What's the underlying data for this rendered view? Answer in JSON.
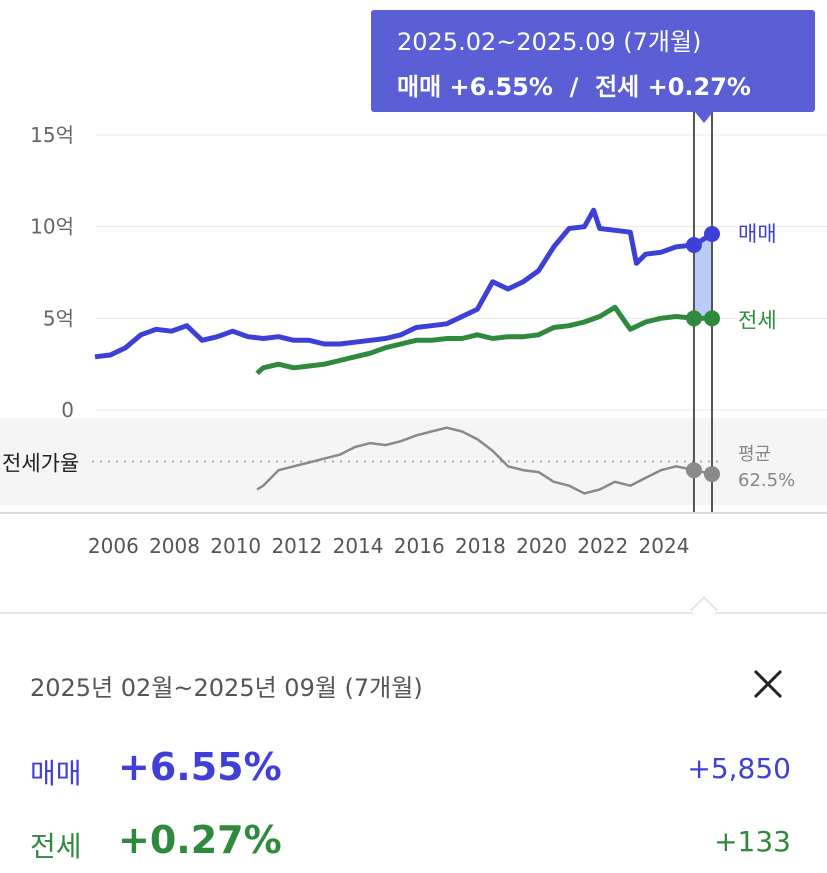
{
  "tooltip": {
    "period": "2025.02~2025.09 (7개월)",
    "summary": "매매 +6.55%  /  전세 +0.27%"
  },
  "colors": {
    "sale": "#3d3fd6",
    "jeonse": "#2f8a3e",
    "ratio": "#8a8a8a",
    "tooltip_bg": "#5a5fd6",
    "highlight": "#b9ccf5"
  },
  "chart_data": {
    "type": "line",
    "x_ticks": [
      "2006",
      "2008",
      "2010",
      "2012",
      "2014",
      "2016",
      "2018",
      "2020",
      "2022",
      "2024"
    ],
    "y_ticks": [
      "15억",
      "10억",
      "5억",
      "0"
    ],
    "y_unit": "억",
    "ylim": [
      0,
      15
    ],
    "ratio_label": "전세가율",
    "ratio_avg_label": "평균",
    "ratio_avg_value": "62.5%",
    "ratio_avg": 62.5,
    "selection": {
      "start": 2025.08,
      "end": 2025.67
    },
    "series": [
      {
        "name": "매매",
        "end_label": "매매",
        "points": [
          [
            2005.5,
            2.9
          ],
          [
            2006.0,
            3.0
          ],
          [
            2006.5,
            3.4
          ],
          [
            2007.0,
            4.1
          ],
          [
            2007.5,
            4.4
          ],
          [
            2008.0,
            4.3
          ],
          [
            2008.5,
            4.6
          ],
          [
            2009.0,
            3.8
          ],
          [
            2009.5,
            4.0
          ],
          [
            2010.0,
            4.3
          ],
          [
            2010.5,
            4.0
          ],
          [
            2011.0,
            3.9
          ],
          [
            2011.5,
            4.0
          ],
          [
            2012.0,
            3.8
          ],
          [
            2012.5,
            3.8
          ],
          [
            2013.0,
            3.6
          ],
          [
            2013.5,
            3.6
          ],
          [
            2014.0,
            3.7
          ],
          [
            2014.5,
            3.8
          ],
          [
            2015.0,
            3.9
          ],
          [
            2015.5,
            4.1
          ],
          [
            2016.0,
            4.5
          ],
          [
            2016.5,
            4.6
          ],
          [
            2017.0,
            4.7
          ],
          [
            2017.5,
            5.1
          ],
          [
            2018.0,
            5.5
          ],
          [
            2018.5,
            7.0
          ],
          [
            2019.0,
            6.6
          ],
          [
            2019.5,
            7.0
          ],
          [
            2020.0,
            7.6
          ],
          [
            2020.5,
            8.9
          ],
          [
            2021.0,
            9.9
          ],
          [
            2021.5,
            10.0
          ],
          [
            2021.8,
            10.9
          ],
          [
            2022.0,
            9.9
          ],
          [
            2022.5,
            9.8
          ],
          [
            2023.0,
            9.7
          ],
          [
            2023.2,
            8.0
          ],
          [
            2023.5,
            8.5
          ],
          [
            2024.0,
            8.6
          ],
          [
            2024.5,
            8.9
          ],
          [
            2025.08,
            9.0
          ],
          [
            2025.67,
            9.6
          ]
        ]
      },
      {
        "name": "전세",
        "end_label": "전세",
        "points": [
          [
            2010.8,
            2.0
          ],
          [
            2011.0,
            2.3
          ],
          [
            2011.5,
            2.5
          ],
          [
            2012.0,
            2.3
          ],
          [
            2012.5,
            2.4
          ],
          [
            2013.0,
            2.5
          ],
          [
            2013.5,
            2.7
          ],
          [
            2014.0,
            2.9
          ],
          [
            2014.5,
            3.1
          ],
          [
            2015.0,
            3.4
          ],
          [
            2015.5,
            3.6
          ],
          [
            2016.0,
            3.8
          ],
          [
            2016.5,
            3.8
          ],
          [
            2017.0,
            3.9
          ],
          [
            2017.5,
            3.9
          ],
          [
            2018.0,
            4.1
          ],
          [
            2018.5,
            3.9
          ],
          [
            2019.0,
            4.0
          ],
          [
            2019.5,
            4.0
          ],
          [
            2020.0,
            4.1
          ],
          [
            2020.5,
            4.5
          ],
          [
            2021.0,
            4.6
          ],
          [
            2021.5,
            4.8
          ],
          [
            2022.0,
            5.1
          ],
          [
            2022.5,
            5.6
          ],
          [
            2023.0,
            4.4
          ],
          [
            2023.5,
            4.8
          ],
          [
            2024.0,
            5.0
          ],
          [
            2024.5,
            5.1
          ],
          [
            2025.08,
            5.0
          ],
          [
            2025.67,
            5.0
          ]
        ]
      },
      {
        "name": "전세가율",
        "points": [
          [
            2010.8,
            48
          ],
          [
            2011.0,
            50
          ],
          [
            2011.5,
            58
          ],
          [
            2012.0,
            60
          ],
          [
            2012.5,
            62
          ],
          [
            2013.0,
            64
          ],
          [
            2013.5,
            66
          ],
          [
            2014.0,
            70
          ],
          [
            2014.5,
            72
          ],
          [
            2015.0,
            71
          ],
          [
            2015.5,
            73
          ],
          [
            2016.0,
            76
          ],
          [
            2016.5,
            78
          ],
          [
            2017.0,
            80
          ],
          [
            2017.5,
            78
          ],
          [
            2018.0,
            74
          ],
          [
            2018.5,
            68
          ],
          [
            2019.0,
            60
          ],
          [
            2019.5,
            58
          ],
          [
            2020.0,
            57
          ],
          [
            2020.5,
            52
          ],
          [
            2021.0,
            50
          ],
          [
            2021.5,
            46
          ],
          [
            2022.0,
            48
          ],
          [
            2022.5,
            52
          ],
          [
            2023.0,
            50
          ],
          [
            2023.5,
            54
          ],
          [
            2024.0,
            58
          ],
          [
            2024.5,
            60
          ],
          [
            2025.08,
            58
          ],
          [
            2025.67,
            56
          ]
        ]
      }
    ]
  },
  "panel": {
    "period": "2025년 02월~2025년 09월 (7개월)",
    "rows": [
      {
        "label": "매매",
        "pct": "+6.55%",
        "amount": "+5,850"
      },
      {
        "label": "전세",
        "pct": "+0.27%",
        "amount": "+133"
      }
    ]
  }
}
